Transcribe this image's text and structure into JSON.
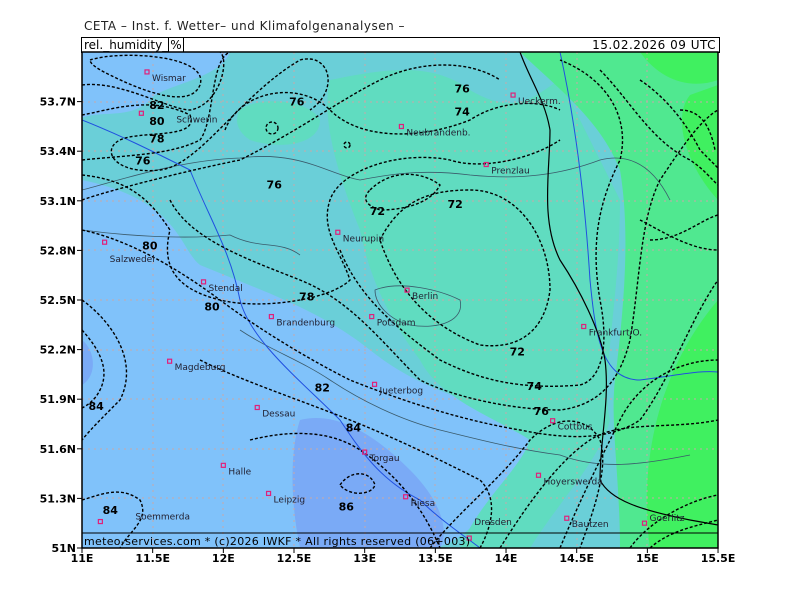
{
  "header": {
    "institute": "CETA – Inst. f. Wetter– und Klimafolgenanalysen –",
    "parameter": "rel._humidity_",
    "unit": "%",
    "valid_time": "15.02.2026 09 UTC"
  },
  "footer": "meteo-services.com * (c)2026 IWKF * All rights reserved (06+003)",
  "axes": {
    "lon_ticks": [
      "11E",
      "11.5E",
      "12E",
      "12.5E",
      "13E",
      "13.5E",
      "14E",
      "14.5E",
      "15E",
      "15.5E"
    ],
    "lat_ticks": [
      "51N",
      "51.3N",
      "51.6N",
      "51.9N",
      "52.2N",
      "52.5N",
      "52.8N",
      "53.1N",
      "53.4N",
      "53.7N"
    ]
  },
  "colors": {
    "blue": "#80c2fa",
    "violet_blue": "#7aaaf6",
    "cyan": "#6acfd8",
    "mint": "#60dcc0",
    "green": "#50e890",
    "bright_green": "#40f060",
    "city_marker": "#e0207a"
  },
  "cities": [
    {
      "name": "Wismar",
      "lon": 11.46,
      "lat": 53.88
    },
    {
      "name": "Schwerin",
      "lon": 11.42,
      "lat": 53.63
    },
    {
      "name": "Neubrandenb.",
      "lon": 13.26,
      "lat": 53.55
    },
    {
      "name": "Ueckerm.",
      "lon": 14.05,
      "lat": 53.74
    },
    {
      "name": "Prenzlau",
      "lon": 13.86,
      "lat": 53.32
    },
    {
      "name": "Neurupin",
      "lon": 12.81,
      "lat": 52.91
    },
    {
      "name": "Salzwedel",
      "lon": 11.16,
      "lat": 52.85
    },
    {
      "name": "Stendal",
      "lon": 11.86,
      "lat": 52.61
    },
    {
      "name": "Brandenburg",
      "lon": 12.34,
      "lat": 52.4
    },
    {
      "name": "Potsdam",
      "lon": 13.05,
      "lat": 52.4
    },
    {
      "name": "Berlin",
      "lon": 13.3,
      "lat": 52.56
    },
    {
      "name": "Frankfurt/O.",
      "lon": 14.55,
      "lat": 52.34
    },
    {
      "name": "Magdeburg",
      "lon": 11.62,
      "lat": 52.13
    },
    {
      "name": "Jueterbog",
      "lon": 13.07,
      "lat": 51.99
    },
    {
      "name": "Dessau",
      "lon": 12.24,
      "lat": 51.85
    },
    {
      "name": "Cottbus",
      "lon": 14.33,
      "lat": 51.77
    },
    {
      "name": "Torgau",
      "lon": 13.0,
      "lat": 51.58
    },
    {
      "name": "Halle",
      "lon": 12.0,
      "lat": 51.5
    },
    {
      "name": "Hoyerswerda",
      "lon": 14.23,
      "lat": 51.44
    },
    {
      "name": "Leipzig",
      "lon": 12.32,
      "lat": 51.33
    },
    {
      "name": "Riesa",
      "lon": 13.29,
      "lat": 51.31
    },
    {
      "name": "Soemmerda",
      "lon": 11.13,
      "lat": 51.16
    },
    {
      "name": "Bautzen",
      "lon": 14.43,
      "lat": 51.18
    },
    {
      "name": "Dresden",
      "lon": 13.74,
      "lat": 51.06
    },
    {
      "name": "Goerlitz",
      "lon": 14.98,
      "lat": 51.15
    }
  ],
  "contour_labels": [
    {
      "value": "82",
      "lon": 11.53,
      "lat": 53.68
    },
    {
      "value": "80",
      "lon": 11.53,
      "lat": 53.65
    },
    {
      "value": "78",
      "lon": 11.53,
      "lat": 53.61
    },
    {
      "value": "76",
      "lon": 12.52,
      "lat": 53.7
    },
    {
      "value": "76",
      "lon": 11.43,
      "lat": 53.41
    },
    {
      "value": "76",
      "lon": 13.69,
      "lat": 53.78
    },
    {
      "value": "74",
      "lon": 13.69,
      "lat": 53.64
    },
    {
      "value": "76",
      "lon": 12.36,
      "lat": 53.2
    },
    {
      "value": "72",
      "lon": 13.09,
      "lat": 53.04
    },
    {
      "value": "72",
      "lon": 13.64,
      "lat": 53.08
    },
    {
      "value": "80",
      "lon": 11.48,
      "lat": 52.83
    },
    {
      "value": "78",
      "lon": 12.59,
      "lat": 52.52
    },
    {
      "value": "80",
      "lon": 11.92,
      "lat": 52.46
    },
    {
      "value": "72",
      "lon": 14.08,
      "lat": 52.19
    },
    {
      "value": "74",
      "lon": 14.2,
      "lat": 51.98
    },
    {
      "value": "76",
      "lon": 14.25,
      "lat": 51.83
    },
    {
      "value": "82",
      "lon": 12.7,
      "lat": 51.97
    },
    {
      "value": "84",
      "lon": 11.1,
      "lat": 51.86
    },
    {
      "value": "84",
      "lon": 12.92,
      "lat": 51.73
    },
    {
      "value": "86",
      "lon": 12.87,
      "lat": 51.25
    },
    {
      "value": "84",
      "lon": 11.2,
      "lat": 51.23
    }
  ]
}
